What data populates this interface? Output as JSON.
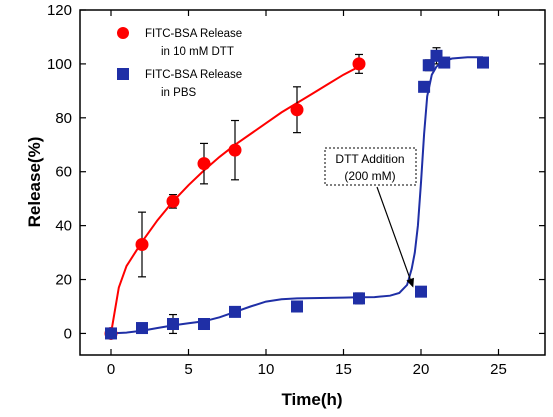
{
  "chart_data": {
    "type": "scatter",
    "xlabel": "Time(h)",
    "ylabel": "Release(%)",
    "xlim": [
      -2,
      28
    ],
    "ylim": [
      -8,
      120
    ],
    "xticks": [
      0,
      5,
      10,
      15,
      20,
      25
    ],
    "yticks": [
      0,
      20,
      40,
      60,
      80,
      100,
      120
    ],
    "legend_position": "top-left",
    "series": [
      {
        "name": "FITC-BSA Release in 10 mM DTT",
        "legend_lines": [
          "FITC-BSA Release",
          "in 10 mM DTT"
        ],
        "marker": "circle",
        "color": "#ff0000",
        "points": [
          {
            "x": 0,
            "y": 0,
            "err": 0
          },
          {
            "x": 2,
            "y": 33,
            "err": 12
          },
          {
            "x": 4,
            "y": 49,
            "err": 2.5
          },
          {
            "x": 6,
            "y": 63,
            "err": 7.5
          },
          {
            "x": 8,
            "y": 68,
            "err": 11
          },
          {
            "x": 12,
            "y": 83,
            "err": 8.5
          },
          {
            "x": 16,
            "y": 100,
            "err": 3.5
          }
        ]
      },
      {
        "name": "FITC-BSA Release in PBS",
        "legend_lines": [
          "FITC-BSA Release",
          "in PBS"
        ],
        "marker": "square",
        "color": "#1f2fa6",
        "points": [
          {
            "x": 0,
            "y": 0,
            "err": 0
          },
          {
            "x": 2,
            "y": 2,
            "err": 1.5
          },
          {
            "x": 4,
            "y": 3.5,
            "err": 3.5
          },
          {
            "x": 6,
            "y": 3.5,
            "err": 1.5
          },
          {
            "x": 8,
            "y": 8,
            "err": 1.5
          },
          {
            "x": 12,
            "y": 10,
            "err": 2
          },
          {
            "x": 16,
            "y": 13,
            "err": 2
          },
          {
            "x": 20,
            "y": 15.5,
            "err": 1
          },
          {
            "x": 20.2,
            "y": 91.5,
            "err": 1.5
          },
          {
            "x": 20.5,
            "y": 99.5,
            "err": 2
          },
          {
            "x": 21,
            "y": 103,
            "err": 3
          },
          {
            "x": 21.5,
            "y": 100.5,
            "err": 1.5
          },
          {
            "x": 24,
            "y": 100.5,
            "err": 1
          }
        ]
      }
    ],
    "fit_curves": [
      {
        "series": "FITC-BSA Release in 10 mM DTT",
        "color": "#ff0000",
        "points": [
          [
            0,
            0
          ],
          [
            0.5,
            17
          ],
          [
            1,
            25
          ],
          [
            2,
            34
          ],
          [
            3,
            42
          ],
          [
            4,
            49
          ],
          [
            5,
            55
          ],
          [
            6,
            60.5
          ],
          [
            7,
            65.5
          ],
          [
            8,
            70
          ],
          [
            9,
            74
          ],
          [
            10,
            78
          ],
          [
            11,
            82
          ],
          [
            12,
            85.5
          ],
          [
            13,
            89
          ],
          [
            14,
            92.5
          ],
          [
            15,
            96
          ],
          [
            16,
            99
          ]
        ]
      },
      {
        "series": "FITC-BSA Release in PBS",
        "color": "#1f2fa6",
        "points": [
          [
            0,
            0
          ],
          [
            1,
            0.3
          ],
          [
            2,
            1
          ],
          [
            3,
            2
          ],
          [
            4,
            3
          ],
          [
            5,
            3.8
          ],
          [
            6,
            4.5
          ],
          [
            7,
            6
          ],
          [
            8,
            8
          ],
          [
            9,
            10
          ],
          [
            10,
            11.8
          ],
          [
            11,
            12.7
          ],
          [
            12,
            13
          ],
          [
            13,
            13.1
          ],
          [
            14,
            13.2
          ],
          [
            15,
            13.3
          ],
          [
            16,
            13.4
          ],
          [
            17,
            13.5
          ],
          [
            18,
            14
          ],
          [
            18.6,
            15
          ],
          [
            19.1,
            18
          ],
          [
            19.4,
            24
          ],
          [
            19.6,
            30
          ],
          [
            19.8,
            40
          ],
          [
            20,
            56
          ],
          [
            20.2,
            74
          ],
          [
            20.4,
            88
          ],
          [
            20.7,
            96
          ],
          [
            21,
            99
          ],
          [
            21.5,
            101
          ],
          [
            22,
            102
          ],
          [
            23,
            102.5
          ],
          [
            24,
            102.5
          ]
        ]
      }
    ],
    "annotation": {
      "lines": [
        "DTT Addition",
        "(200 mM)"
      ],
      "arrow_target": {
        "x": 19.5,
        "y": 17
      }
    }
  }
}
